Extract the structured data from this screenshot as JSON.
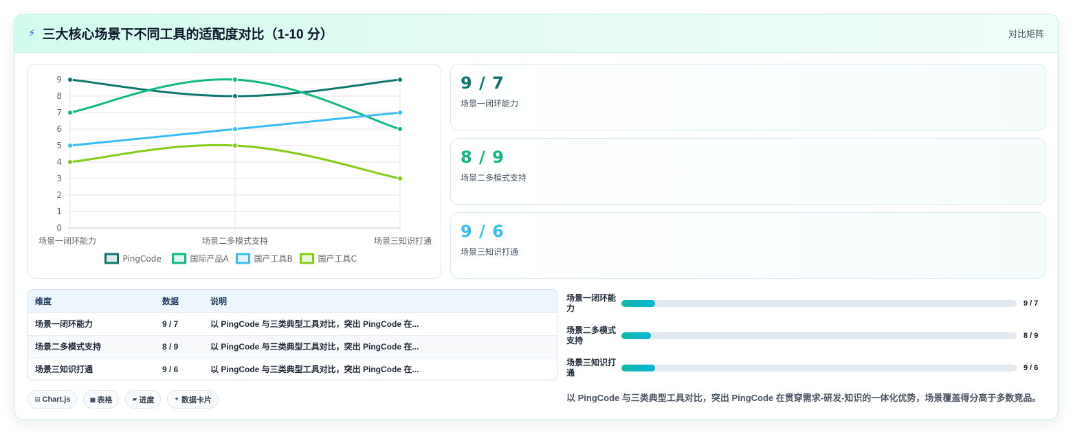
{
  "header": {
    "icon": "lightning-icon",
    "title": "三大核心场景下不同工具的适配度对比（1-10 分）",
    "right_label": "对比矩阵"
  },
  "chart_data": {
    "type": "line",
    "categories": [
      "场景一闭环能力",
      "场景二多模式支持",
      "场景三知识打通"
    ],
    "ylim": [
      0,
      9
    ],
    "yticks": [
      0,
      1,
      2,
      3,
      4,
      5,
      6,
      7,
      8,
      9
    ],
    "grid": true,
    "legend_position": "bottom",
    "series": [
      {
        "name": "PingCode",
        "values": [
          9,
          8,
          9
        ],
        "color": "#0f766e"
      },
      {
        "name": "国际产品A",
        "values": [
          7,
          9,
          6
        ],
        "color": "#10b981"
      },
      {
        "name": "国产工具B",
        "values": [
          5,
          6,
          7
        ],
        "color": "#38bdf8"
      },
      {
        "name": "国产工具C",
        "values": [
          4,
          5,
          3
        ],
        "color": "#84cc16"
      }
    ]
  },
  "stats": [
    {
      "value": "9 / 7",
      "label": "场景一闭环能力",
      "color": "#0f766e"
    },
    {
      "value": "8 / 9",
      "label": "场景二多模式支持",
      "color": "#10b981"
    },
    {
      "value": "9 / 6",
      "label": "场景三知识打通",
      "color": "#38bdf8"
    }
  ],
  "table": {
    "headers": [
      "维度",
      "数据",
      "说明"
    ],
    "rows": [
      {
        "dimension": "场景一闭环能力",
        "data": "9 / 7",
        "note": "以 PingCode 与三类典型工具对比，突出 PingCode 在..."
      },
      {
        "dimension": "场景二多模式支持",
        "data": "8 / 9",
        "note": "以 PingCode 与三类典型工具对比，突出 PingCode 在..."
      },
      {
        "dimension": "场景三知识打通",
        "data": "9 / 6",
        "note": "以 PingCode 与三类典型工具对比，突出 PingCode 在..."
      }
    ]
  },
  "chips": [
    {
      "icon": "chart-icon",
      "label": "Chart.js"
    },
    {
      "icon": "table-icon",
      "label": "表格"
    },
    {
      "icon": "progress-icon",
      "label": "进度"
    },
    {
      "icon": "sparkle-icon",
      "label": "数据卡片"
    }
  ],
  "progress": [
    {
      "label": "场景一闭环能力",
      "value": "9 / 7",
      "fraction": 0.085
    },
    {
      "label": "场景二多模式支持",
      "value": "8 / 9",
      "fraction": 0.075
    },
    {
      "label": "场景三知识打通",
      "value": "9 / 6",
      "fraction": 0.085
    }
  ],
  "summary": "以 PingCode 与三类典型工具对比，突出 PingCode 在贯穿需求-研发-知识的一体化优势，场景覆盖得分高于多数竞品。"
}
